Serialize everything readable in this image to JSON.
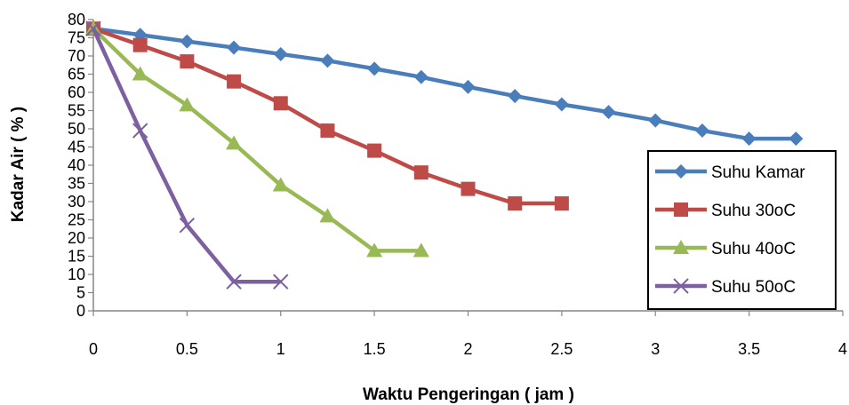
{
  "chart_data": {
    "type": "line",
    "title": "",
    "xlabel": "Waktu Pengeringan ( jam )",
    "ylabel": "Kadar Air ( % )",
    "xlim": [
      0,
      4
    ],
    "ylim": [
      0,
      80
    ],
    "xticks": [
      0,
      0.5,
      1,
      1.5,
      2,
      2.5,
      3,
      3.5,
      4
    ],
    "yticks": [
      0,
      5,
      10,
      15,
      20,
      25,
      30,
      35,
      40,
      45,
      50,
      55,
      60,
      65,
      70,
      75,
      80
    ],
    "grid": false,
    "legend_position": "right",
    "series": [
      {
        "name": "Suhu Kamar",
        "color": "#4A7EBB",
        "marker": "diamond",
        "x": [
          0,
          0.25,
          0.5,
          0.75,
          1,
          1.25,
          1.5,
          1.75,
          2,
          2.25,
          2.5,
          2.75,
          3,
          3.25,
          3.5,
          3.75
        ],
        "y": [
          77.5,
          75.8,
          74,
          72.3,
          70.5,
          68.7,
          66.5,
          64.2,
          61.5,
          59,
          56.7,
          54.6,
          52.3,
          49.5,
          47.3,
          47.3
        ]
      },
      {
        "name": "Suhu 30oC",
        "color": "#BE4B48",
        "marker": "square",
        "x": [
          0,
          0.25,
          0.5,
          0.75,
          1,
          1.25,
          1.5,
          1.75,
          2,
          2.25,
          2.5
        ],
        "y": [
          77.5,
          73,
          68.5,
          63,
          57,
          49.5,
          44,
          38,
          33.5,
          29.5,
          29.5
        ]
      },
      {
        "name": "Suhu 40oC",
        "color": "#98B954",
        "marker": "triangle",
        "x": [
          0,
          0.25,
          0.5,
          0.75,
          1,
          1.25,
          1.5,
          1.75
        ],
        "y": [
          77.5,
          65,
          56.5,
          46,
          34.5,
          26,
          16.5,
          16.5
        ]
      },
      {
        "name": "Suhu 50oC",
        "color": "#7D60A0",
        "marker": "x",
        "x": [
          0,
          0.25,
          0.5,
          0.75,
          1
        ],
        "y": [
          77.5,
          49.5,
          23.5,
          8,
          8
        ]
      }
    ]
  }
}
